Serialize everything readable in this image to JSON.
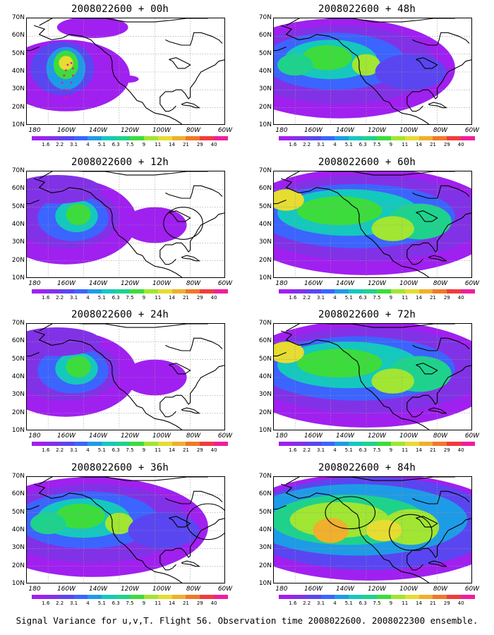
{
  "colorbar": {
    "labels": [
      "1.6",
      "2.2",
      "3.1",
      "4",
      "5.1",
      "6.3",
      "7.5",
      "9",
      "11",
      "14",
      "21",
      "29",
      "40"
    ],
    "colors": [
      "#a020f0",
      "#8232e6",
      "#5a46f0",
      "#3c64ff",
      "#1e9be6",
      "#14c8be",
      "#1ed28c",
      "#3cdc3c",
      "#a0e632",
      "#e6dc32",
      "#f0af2d",
      "#f07828",
      "#f03c3c",
      "#f01e9b"
    ]
  },
  "axes": {
    "y_labels": [
      "70N",
      "60N",
      "50N",
      "40N",
      "30N",
      "20N",
      "10N"
    ],
    "x_labels": [
      "180",
      "160W",
      "140W",
      "120W",
      "100W",
      "80W",
      "60W"
    ]
  },
  "panels": [
    {
      "title": "2008022600 + 00h",
      "level": 0
    },
    {
      "title": "2008022600 + 48h",
      "level": 2
    },
    {
      "title": "2008022600 + 12h",
      "level": 1
    },
    {
      "title": "2008022600 + 60h",
      "level": 3
    },
    {
      "title": "2008022600 + 24h",
      "level": 1
    },
    {
      "title": "2008022600 + 72h",
      "level": 3
    },
    {
      "title": "2008022600 + 36h",
      "level": 2
    },
    {
      "title": "2008022600 + 84h",
      "level": 4
    }
  ],
  "caption": "Signal Variance for u,v,T. Flight 56. Observation time 2008022600. 2008022300 ensemble."
}
